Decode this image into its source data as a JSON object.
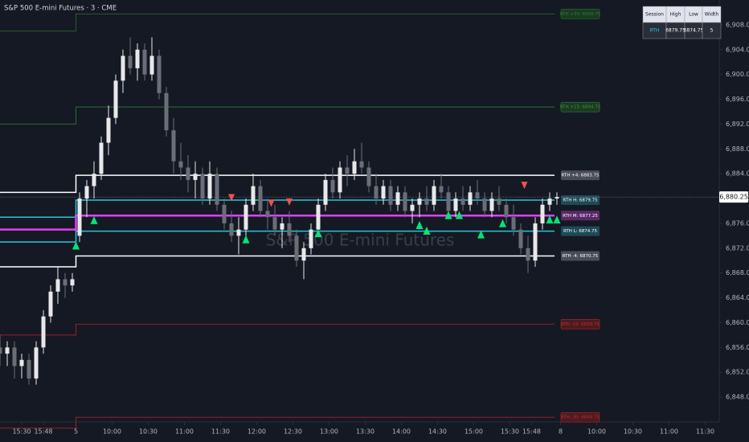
{
  "chart_data": {
    "type": "candlestick",
    "title": "S&P 500 E-mini Futures · 3 · CME",
    "watermark": "S&P 500 E-mini Futures",
    "up_color": "#e8e8e8",
    "down_color": "#6b6e76",
    "xlim": [
      0,
      199
    ],
    "ylim": [
      6844,
      6912
    ],
    "yticks": [
      {
        "value": 6848,
        "label": "6,848.00"
      },
      {
        "value": 6852,
        "label": "6,852.00"
      },
      {
        "value": 6856,
        "label": "6,856.00"
      },
      {
        "value": 6860,
        "label": "6,860.00"
      },
      {
        "value": 6864,
        "label": "6,864.00"
      },
      {
        "value": 6868,
        "label": "6,868.00"
      },
      {
        "value": 6872,
        "label": "6,872.00"
      },
      {
        "value": 6876,
        "label": "6,876.00"
      },
      {
        "value": 6880,
        "label": "6,880.00"
      },
      {
        "value": 6884,
        "label": "6,884.00"
      },
      {
        "value": 6888,
        "label": "6,888.00"
      },
      {
        "value": 6892,
        "label": "6,892.00"
      },
      {
        "value": 6896,
        "label": "6,896.00"
      },
      {
        "value": 6900,
        "label": "6,900.00"
      },
      {
        "value": 6904,
        "label": "6,904.00"
      },
      {
        "value": 6908,
        "label": "6,908.00"
      }
    ],
    "xticks": [
      {
        "value": 6,
        "label": "15:30"
      },
      {
        "value": 12,
        "label": "15:48"
      },
      {
        "value": 21,
        "label": "5"
      },
      {
        "value": 31,
        "label": "10:00"
      },
      {
        "value": 41,
        "label": "10:30"
      },
      {
        "value": 51,
        "label": "11:00"
      },
      {
        "value": 61,
        "label": "11:30"
      },
      {
        "value": 71,
        "label": "12:00"
      },
      {
        "value": 81,
        "label": "12:30"
      },
      {
        "value": 91,
        "label": "13:00"
      },
      {
        "value": 101,
        "label": "13:30"
      },
      {
        "value": 111,
        "label": "14:00"
      },
      {
        "value": 121,
        "label": "14:30"
      },
      {
        "value": 131,
        "label": "15:00"
      },
      {
        "value": 141,
        "label": "15:30"
      },
      {
        "value": 147,
        "label": "15:48"
      },
      {
        "value": 155,
        "label": "8"
      },
      {
        "value": 165,
        "label": "10:00"
      },
      {
        "value": 175,
        "label": "10:30"
      },
      {
        "value": 185,
        "label": "11:00"
      },
      {
        "value": 195,
        "label": "11:30"
      }
    ],
    "session_start": 21,
    "x": [
      0,
      2,
      4,
      6,
      8,
      10,
      12,
      14,
      16,
      18,
      20,
      22,
      24,
      26,
      28,
      30,
      32,
      34,
      36,
      38,
      40,
      42,
      44,
      46,
      48,
      50,
      52,
      54,
      56,
      58,
      60,
      62,
      64,
      66,
      68,
      70,
      72,
      74,
      76,
      78,
      80,
      82,
      84,
      86,
      88,
      90,
      92,
      94,
      96,
      98,
      100,
      102,
      104,
      106,
      108,
      110,
      112,
      114,
      116,
      118,
      120,
      122,
      124,
      126,
      128,
      130,
      132,
      134,
      136,
      138,
      140,
      142,
      144,
      146,
      148,
      150,
      152,
      154
    ],
    "candles": [
      [
        6856,
        6858,
        6853,
        6855
      ],
      [
        6855,
        6857,
        6853,
        6856
      ],
      [
        6856,
        6857,
        6851,
        6853
      ],
      [
        6853,
        6855,
        6851,
        6854
      ],
      [
        6854,
        6855,
        6850,
        6851
      ],
      [
        6851,
        6857,
        6850,
        6856
      ],
      [
        6856,
        6862,
        6855,
        6861
      ],
      [
        6861,
        6866,
        6860,
        6865
      ],
      [
        6865,
        6869,
        6863,
        6867
      ],
      [
        6867,
        6868,
        6864,
        6866
      ],
      [
        6866,
        6868,
        6865,
        6867
      ],
      [
        6874,
        6881,
        6873,
        6880
      ],
      [
        6880,
        6883,
        6877,
        6882
      ],
      [
        6882,
        6886,
        6880,
        6884
      ],
      [
        6884,
        6890,
        6883,
        6889
      ],
      [
        6889,
        6895,
        6887,
        6893
      ],
      [
        6893,
        6900,
        6892,
        6899
      ],
      [
        6899,
        6904,
        6897,
        6903
      ],
      [
        6903,
        6906,
        6900,
        6901
      ],
      [
        6901,
        6905,
        6899,
        6904
      ],
      [
        6904,
        6905,
        6899,
        6900
      ],
      [
        6900,
        6906,
        6899,
        6903
      ],
      [
        6903,
        6904,
        6896,
        6897
      ],
      [
        6897,
        6898,
        6890,
        6891
      ],
      [
        6891,
        6893,
        6884,
        6886
      ],
      [
        6886,
        6889,
        6883,
        6885
      ],
      [
        6885,
        6887,
        6881,
        6883
      ],
      [
        6883,
        6886,
        6880,
        6884
      ],
      [
        6884,
        6885,
        6879,
        6880
      ],
      [
        6880,
        6886,
        6879,
        6884
      ],
      [
        6884,
        6885,
        6878,
        6879
      ],
      [
        6879,
        6880,
        6875,
        6876
      ],
      [
        6876,
        6878,
        6873,
        6874
      ],
      [
        6874,
        6877,
        6871,
        6875
      ],
      [
        6875,
        6880,
        6873,
        6879
      ],
      [
        6879,
        6884,
        6878,
        6882
      ],
      [
        6882,
        6883,
        6877,
        6878
      ],
      [
        6878,
        6880,
        6875,
        6877
      ],
      [
        6877,
        6879,
        6874,
        6875
      ],
      [
        6875,
        6877,
        6872,
        6876
      ],
      [
        6876,
        6878,
        6873,
        6874
      ],
      [
        6874,
        6875,
        6869,
        6870
      ],
      [
        6870,
        6873,
        6867,
        6872
      ],
      [
        6872,
        6876,
        6871,
        6875
      ],
      [
        6875,
        6880,
        6874,
        6879
      ],
      [
        6879,
        6884,
        6878,
        6883
      ],
      [
        6883,
        6885,
        6880,
        6881
      ],
      [
        6881,
        6886,
        6880,
        6885
      ],
      [
        6885,
        6887,
        6882,
        6884
      ],
      [
        6884,
        6888,
        6883,
        6886
      ],
      [
        6886,
        6889,
        6884,
        6885
      ],
      [
        6885,
        6886,
        6881,
        6882
      ],
      [
        6882,
        6884,
        6879,
        6880
      ],
      [
        6880,
        6883,
        6879,
        6882
      ],
      [
        6882,
        6883,
        6878,
        6879
      ],
      [
        6879,
        6882,
        6878,
        6881
      ],
      [
        6881,
        6882,
        6877,
        6878
      ],
      [
        6878,
        6880,
        6876,
        6879
      ],
      [
        6879,
        6881,
        6877,
        6880
      ],
      [
        6880,
        6882,
        6878,
        6879
      ],
      [
        6879,
        6883,
        6878,
        6882
      ],
      [
        6882,
        6884,
        6880,
        6881
      ],
      [
        6881,
        6882,
        6877,
        6878
      ],
      [
        6878,
        6881,
        6877,
        6880
      ],
      [
        6880,
        6882,
        6878,
        6879
      ],
      [
        6879,
        6882,
        6878,
        6881
      ],
      [
        6881,
        6883,
        6879,
        6880
      ],
      [
        6880,
        6881,
        6877,
        6878
      ],
      [
        6878,
        6881,
        6877,
        6880
      ],
      [
        6880,
        6882,
        6878,
        6879
      ],
      [
        6879,
        6880,
        6876,
        6877
      ],
      [
        6877,
        6879,
        6874,
        6875
      ],
      [
        6875,
        6876,
        6871,
        6872
      ],
      [
        6872,
        6874,
        6868,
        6870
      ],
      [
        6870,
        6877,
        6869,
        6876
      ],
      [
        6876,
        6880,
        6875,
        6879
      ],
      [
        6879,
        6881,
        6878,
        6880
      ],
      [
        6880,
        6881,
        6879,
        6880.25
      ]
    ],
    "levels": [
      {
        "label": "RTH +30: 6909.75",
        "value": 6909.75,
        "prior": 6907,
        "color": "#2e7d32",
        "bg": "#1b3a22",
        "width": 1
      },
      {
        "label": "RTH +15: 6894.75",
        "value": 6894.75,
        "prior": 6892,
        "color": "#388e3c",
        "bg": "#1b3a22",
        "width": 1
      },
      {
        "label": "RTH +4: 6883.75",
        "value": 6883.75,
        "prior": 6881,
        "color": "#ffffff",
        "bg": "#4a4d57",
        "width": 1.5
      },
      {
        "label": "RTH H: 6879.75",
        "value": 6879.75,
        "prior": 6877,
        "color": "#26c6da",
        "bg": "#1c4a57",
        "width": 1.5
      },
      {
        "label": "RTH M: 6877.25",
        "value": 6877.25,
        "prior": 6875,
        "color": "#e040fb",
        "bg": "#5a2a66",
        "width": 2.5
      },
      {
        "label": "RTH L: 6874.75",
        "value": 6874.75,
        "prior": 6873,
        "color": "#26c6da",
        "bg": "#1c4a57",
        "width": 1.5
      },
      {
        "label": "RTH -4: 6870.75",
        "value": 6870.75,
        "prior": 6869,
        "color": "#ffffff",
        "bg": "#4a4d57",
        "width": 1.5
      },
      {
        "label": "RTH -15: 6859.75",
        "value": 6859.75,
        "prior": 6858,
        "color": "#c62828",
        "bg": "#4a1c22",
        "width": 1
      },
      {
        "label": "RTH -30: 6844.75",
        "value": 6844.75,
        "prior": 6843,
        "color": "#c62828",
        "bg": "#4a1c22",
        "width": 1
      }
    ],
    "buy_signals": [
      [
        21,
        6872.3
      ],
      [
        26,
        6876.4
      ],
      [
        68,
        6873.3
      ],
      [
        88,
        6874.3
      ],
      [
        116,
        6875.6
      ],
      [
        118,
        6874.7
      ],
      [
        124,
        6877.2
      ],
      [
        127,
        6877.2
      ],
      [
        133,
        6874.1
      ],
      [
        139,
        6875.9
      ],
      [
        152,
        6876.5
      ],
      [
        154,
        6876.5
      ]
    ],
    "sell_signals": [
      [
        64,
        6880.2
      ],
      [
        75,
        6879.3
      ],
      [
        80,
        6879.5
      ],
      [
        145,
        6882.2
      ]
    ],
    "buy_color": "#00e676",
    "sell_color": "#ef5350",
    "last_price": {
      "value": 6880.25,
      "label": "6,880.25"
    }
  },
  "session_table": {
    "columns": [
      "Session",
      "High",
      "Low",
      "Width"
    ],
    "rows": [
      [
        "RTH",
        "6879.75",
        "6874.75",
        "5"
      ]
    ]
  }
}
